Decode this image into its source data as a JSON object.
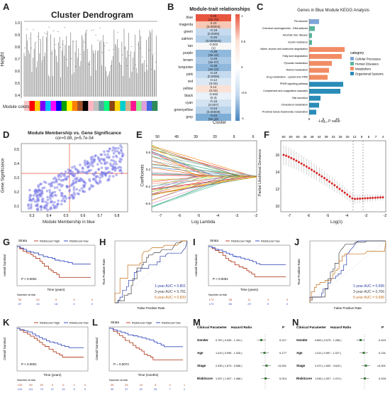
{
  "panels": {
    "A": {
      "label": "A",
      "title": "Cluster Dendrogram",
      "ylabel": "Height",
      "yticks": [
        "1.0",
        "0.9",
        "0.8",
        "0.7",
        "0.6",
        "0.5",
        "0.4"
      ],
      "colorbar_label": "Module colors",
      "colorbar": [
        "#f4c6c6",
        "#ff0000",
        "#ffcc00",
        "#7a00ff",
        "#00bfff",
        "#ff00ff",
        "#0000ff",
        "#00a000",
        "#ffff00",
        "#ff7f00",
        "#a0522d",
        "#000000",
        "#ffb6c1",
        "#c0c0c0",
        "#5f9ea0",
        "#00ff7f",
        "#8b4513",
        "#ffd700",
        "#00ced1",
        "#d2b48c",
        "#ff1493",
        "#90ee90",
        "#dda0dd",
        "#4169e1",
        "#2e8b57"
      ]
    },
    "B": {
      "label": "B",
      "title": "Module-trait relationships",
      "xlabel": "Cluster",
      "rows": [
        {
          "name": "blue",
          "value": "0.88",
          "p": "(3e-76)",
          "color": "#e8553f"
        },
        {
          "name": "magenta",
          "value": "0.23",
          "p": "(0.00004)",
          "color": "#f7c8b5"
        },
        {
          "name": "green",
          "value": "-0.19",
          "p": "(0.0005)",
          "color": "#c6dbef"
        },
        {
          "name": "salmon",
          "value": "-0.26",
          "p": "(0.000003)",
          "color": "#b3cfe8"
        },
        {
          "name": "tan",
          "value": "-0.002",
          "p": "(1)",
          "color": "#f7f7f7"
        },
        {
          "name": "purple",
          "value": "-0.38",
          "p": "(3e-12)",
          "color": "#8fb8dc"
        },
        {
          "name": "brown",
          "value": "-0.29",
          "p": "(3e-07)",
          "color": "#aac9e6"
        },
        {
          "name": "turquoise",
          "value": "-0.38",
          "p": "(4e-12)",
          "color": "#8fb8dc"
        },
        {
          "name": "pink",
          "value": "-0.19",
          "p": "(0.0006)",
          "color": "#c6dbef"
        },
        {
          "name": "red",
          "value": "-0.12",
          "p": "(0.03)",
          "color": "#dce9f5"
        },
        {
          "name": "yellow",
          "value": "0.12",
          "p": "(0.03)",
          "color": "#fbe2d6"
        },
        {
          "name": "black",
          "value": "-0.062",
          "p": "(0.3)",
          "color": "#eaf1f8"
        },
        {
          "name": "cyan",
          "value": "-0.15",
          "p": "(0.007)",
          "color": "#d3e3f2"
        },
        {
          "name": "greenyellow",
          "value": "-0.24",
          "p": "(0.00009)",
          "color": "#b8d2ea"
        },
        {
          "name": "grey",
          "value": "-0.42",
          "p": "(5e-15)",
          "color": "#7eaed6"
        }
      ],
      "scale": [
        "1",
        "0.5",
        "0",
        "-0.5",
        "-1"
      ]
    },
    "C": {
      "label": "C",
      "title": "Genes in Blue Module KEGG Analysis",
      "xlabel": "-Log₁₀ P value",
      "xticks": [
        "0",
        "5",
        "10"
      ],
      "legend_title": "category",
      "legend": [
        {
          "name": "Cellular Processes",
          "color": "#7fa6d9"
        },
        {
          "name": "Human Diseases",
          "color": "#5ab59b"
        },
        {
          "name": "Metabolism",
          "color": "#f28c64"
        },
        {
          "name": "Organismal Systems",
          "color": "#2a8cb8"
        }
      ],
      "bars": [
        {
          "name": "Peroxisome",
          "value": 3.5,
          "cat": 0
        },
        {
          "name": "Chemical carcinogenesis - DNA adducts",
          "value": 2.0,
          "cat": 1
        },
        {
          "name": "Alcoholic liver disease",
          "value": 1.0,
          "cat": 1
        },
        {
          "name": "Insulin resistance",
          "value": 1.0,
          "cat": 1
        },
        {
          "name": "Valine, leucine and isoleucine degradation",
          "value": 12.5,
          "cat": 2
        },
        {
          "name": "Fatty acid degradation",
          "value": 11.5,
          "cat": 2
        },
        {
          "name": "Pyruvate metabolism",
          "value": 8.0,
          "cat": 2
        },
        {
          "name": "Retinol metabolism",
          "value": 7.0,
          "cat": 2
        },
        {
          "name": "Drug metabolism - cytochrome P450",
          "value": 6.5,
          "cat": 2
        },
        {
          "name": "PPAR signaling pathway",
          "value": 12.0,
          "cat": 3
        },
        {
          "name": "Complement and coagulation cascades",
          "value": 11.0,
          "cat": 3
        },
        {
          "name": "Bile secretion",
          "value": 4.0,
          "cat": 3
        },
        {
          "name": "Cholesterol metabolism",
          "value": 3.5,
          "cat": 3
        },
        {
          "name": "Proximal tubule bicarbonate reclamation",
          "value": 2.5,
          "cat": 3
        }
      ]
    },
    "D": {
      "label": "D",
      "title": "Module Membership vs. Gene Significance",
      "subtitle": "cor=0.88, p=5.7e-54",
      "xlabel": "Module Membership in blue",
      "ylabel": "Gene Significance",
      "xticks": [
        "0.3",
        "0.4",
        "0.5",
        "0.6",
        "0.7",
        "0.8"
      ],
      "yticks": [
        "0.5",
        "0.4",
        "0.3",
        "0.2",
        "0.1"
      ]
    },
    "E": {
      "label": "E",
      "xlabel": "Log Lambda",
      "ylabel": "Coefficients",
      "top_ticks": [
        "50",
        "49",
        "39",
        "20",
        "9",
        "6"
      ],
      "xticks": [
        "-7",
        "-6",
        "-5",
        "-4",
        "-3",
        "-2"
      ],
      "yticks": [
        "0.6",
        "0.2",
        "-0.2",
        "-0.6"
      ]
    },
    "F": {
      "label": "F",
      "xlabel": "Log(λ)",
      "ylabel": "Partial Likelihood Deviance",
      "top_ticks": [
        "50",
        "50",
        "50",
        "46",
        "49",
        "44",
        "39",
        "33",
        "25",
        "20",
        "12",
        "9",
        "6",
        "7",
        "4"
      ],
      "xticks": [
        "-7",
        "-6",
        "-5",
        "-4",
        "-3",
        "-2"
      ],
      "yticks": [
        "16",
        "14",
        "12",
        "10"
      ]
    },
    "G": {
      "label": "G",
      "strata": "Strata",
      "high": "RiskScore=high",
      "low": "RiskScore=low",
      "pvalue": "P < 0.0001",
      "xlabel": "Time (years)",
      "ylabel": "overall Survival",
      "risk_title": "Number at risk",
      "risk_high": [
        "90",
        "42",
        "5",
        "3",
        "0"
      ],
      "risk_low": [
        "87",
        "34",
        "18",
        "4",
        "0"
      ],
      "xticks": [
        "0",
        "2.5",
        "5",
        "7.5",
        "10"
      ]
    },
    "H": {
      "label": "H",
      "xlabel": "False Positive Rate",
      "ylabel": "True Positive Rate",
      "auc1": "1-year AUC = 0.801",
      "auc3": "3-year AUC = 0.781",
      "auc5": "5-year AUC = 0.820"
    },
    "I": {
      "label": "I",
      "strata": "Strata",
      "high": "RiskScore=high",
      "low": "RiskScore=low",
      "pvalue": "P < 0.0001",
      "xlabel": "Time (years)",
      "ylabel": "overall Survival",
      "risk_title": "Number at risk",
      "risk_high": [
        "173",
        "38",
        "11",
        "3",
        "0"
      ],
      "risk_low": [
        "173",
        "66",
        "29",
        "5",
        "0"
      ],
      "xticks": [
        "0",
        "2.5",
        "5",
        "7.5",
        "10"
      ]
    },
    "J": {
      "label": "J",
      "xlabel": "False Positive Rate",
      "ylabel": "True Positive Rate",
      "auc1": "1-year AUC = 0.696",
      "auc3": "3-year AUC = 0.706",
      "auc5": "5-year AUC = 0.696"
    },
    "K": {
      "label": "K",
      "high": "RiskScore=high",
      "low": "RiskScore=low",
      "pvalue": "P < 0.0001",
      "xlabel": "Time (years)",
      "ylabel": "Overall Survival",
      "risk_title": "Number at risk",
      "risk_high": [
        "120",
        "99",
        "53",
        "9",
        "6",
        "2",
        "0"
      ],
      "risk_low": [
        "120",
        "111",
        "73",
        "37",
        "15",
        "5",
        "0"
      ]
    },
    "L": {
      "label": "L",
      "strata": "Strata",
      "high": "RiskScore=high",
      "low": "RiskScore=low",
      "pvalue": "P = 0.0074",
      "xlabel": "Time (months)",
      "ylabel": "Overall Survival",
      "risk_title": "Number at risk",
      "risk_high": [
        "39",
        "26",
        "19",
        "6",
        "4",
        "1"
      ],
      "risk_low": [
        "39",
        "37",
        "31",
        "25",
        "7",
        "1"
      ]
    },
    "M": {
      "label": "M",
      "col1": "Clinical Parameter",
      "col2": "Hazard Ratio",
      "col3": "P",
      "rows": [
        {
          "name": "Gender",
          "hr": "0.787 ( 0.539 - 1.151 )",
          "p": "0.217"
        },
        {
          "name": "Age",
          "hr": "1.010 ( 0.995 - 1.025 )",
          "p": "0.177"
        },
        {
          "name": "Stage",
          "hr": "2.439 ( 1.673 - 3.558 )",
          "p": "<0.001"
        },
        {
          "name": "RiskScore",
          "hr": "1.037 ( 1.007 - 1.068 )",
          "p": "0.014"
        }
      ]
    },
    "N": {
      "label": "N",
      "col1": "Clinical Parameter",
      "col2": "Hazard Ratio",
      "col3": "P",
      "rows": [
        {
          "name": "Gender",
          "hr": "0.853 ( 0.579 - 1.258 )",
          "p": "0.419"
        },
        {
          "name": "Age",
          "hr": "1.011 ( 0.997 - 1.027 )",
          "p": "0.131"
        },
        {
          "name": "Stage",
          "hr": "2.472 ( 1.692 - 3.610 )",
          "p": "<0.001"
        },
        {
          "name": "RiskScore",
          "hr": "1.045 ( 1.007 - 1.074 )",
          "p": "0.018"
        }
      ]
    }
  }
}
